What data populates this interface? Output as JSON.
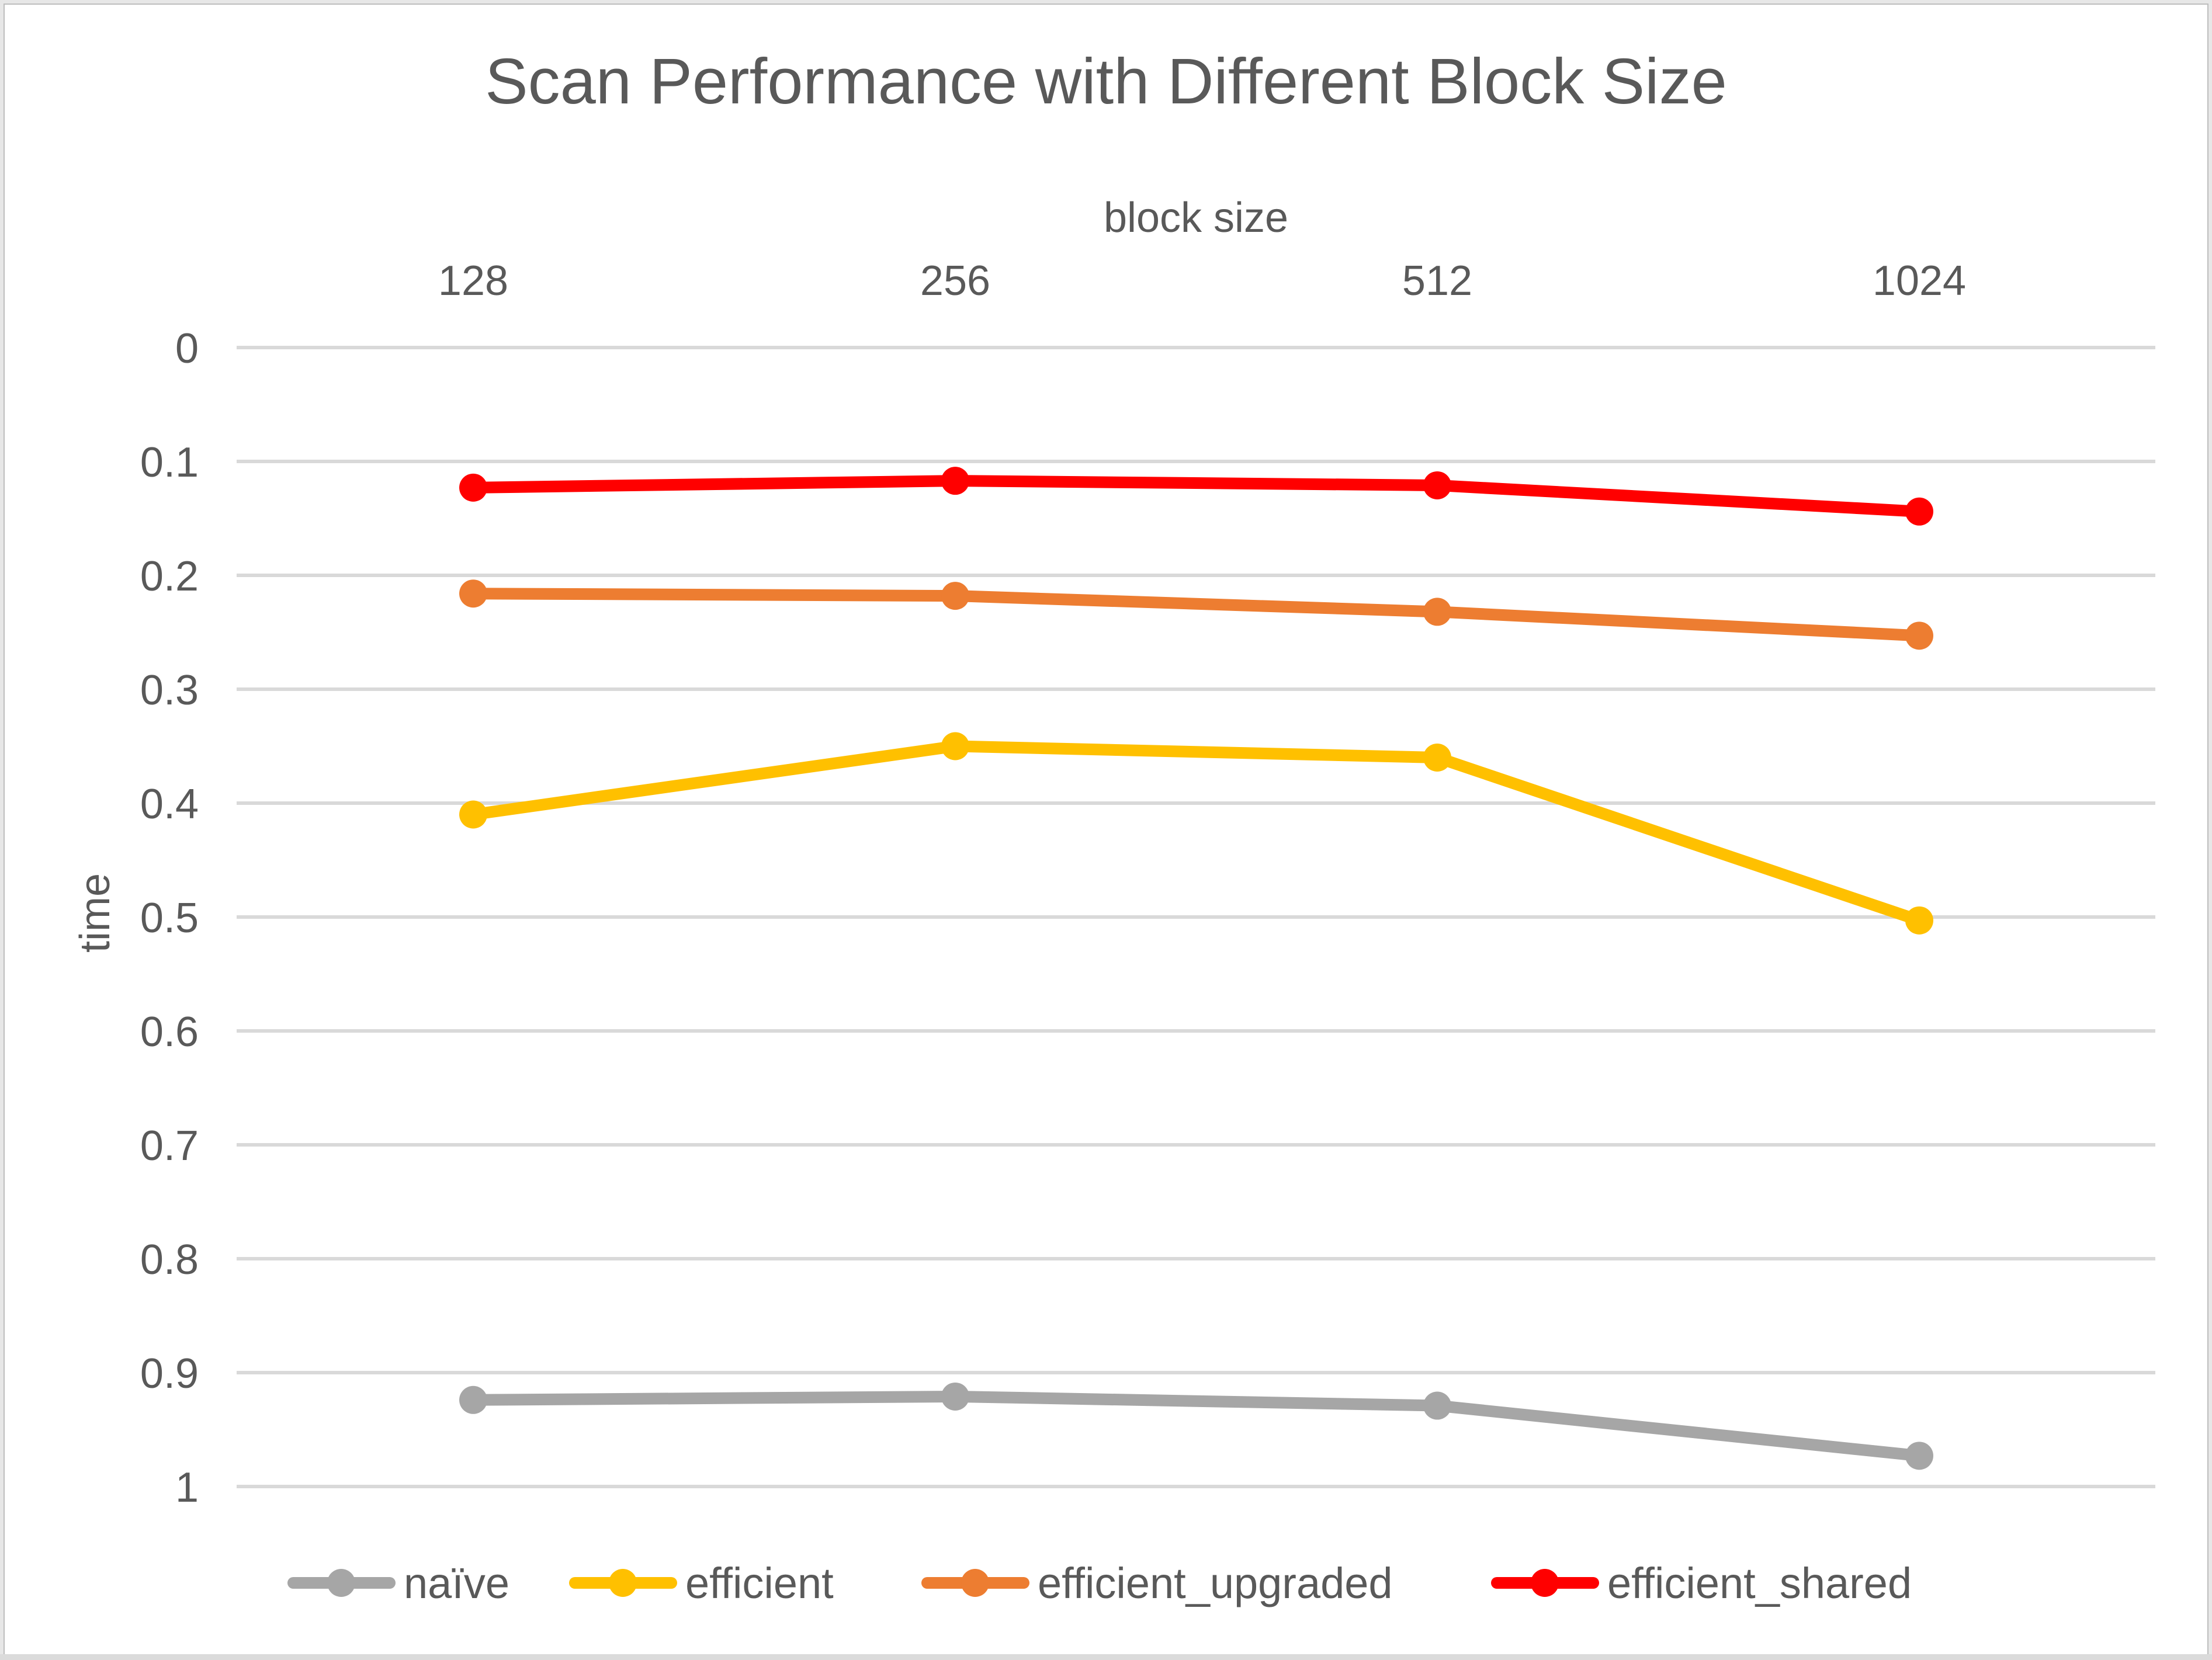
{
  "style": {
    "page_background": "#FFFFFF",
    "text_color": "#595959",
    "gridline_color": "#D9D9D9",
    "outer_border_color": "#E7E7E7",
    "inner_border_color": "#BDBDBD",
    "bottom_strip_color": "#DBDBDB"
  },
  "chart_data": {
    "type": "line",
    "title": "Scan Performance with Different Block Size",
    "xlabel": "block size",
    "ylabel": "time",
    "x_axis_position": "top",
    "y_axis_inverted": true,
    "ylim": [
      0,
      1
    ],
    "y_tick_step": 0.1,
    "grid": true,
    "legend_position": "bottom",
    "categories": [
      "128",
      "256",
      "512",
      "1024"
    ],
    "y_ticks": [
      "0",
      "0.1",
      "0.2",
      "0.3",
      "0.4",
      "0.5",
      "0.6",
      "0.7",
      "0.8",
      "0.9",
      "1"
    ],
    "series": [
      {
        "name": "naïve",
        "color": "#A6A6A6",
        "values": [
          0.924,
          0.921,
          0.929,
          0.973
        ]
      },
      {
        "name": "efficient",
        "color": "#FFC000",
        "values": [
          0.41,
          0.35,
          0.36,
          0.503
        ]
      },
      {
        "name": "efficient_upgraded",
        "color": "#ED7D31",
        "values": [
          0.216,
          0.218,
          0.232,
          0.253
        ]
      },
      {
        "name": "efficient_shared",
        "color": "#FF0000",
        "values": [
          0.123,
          0.117,
          0.121,
          0.144
        ]
      }
    ]
  }
}
